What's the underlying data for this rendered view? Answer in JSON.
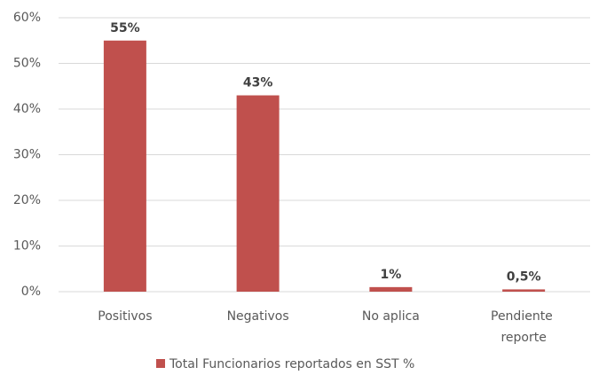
{
  "chart_data": {
    "type": "bar",
    "categories": [
      "Positivos",
      "Negativos",
      "No aplica",
      "Pendiente reporte"
    ],
    "series": [
      {
        "name": "Total Funcionarios reportados en SST %",
        "color": "#c0504d",
        "values": [
          55,
          43,
          1,
          0.5
        ],
        "value_labels": [
          "55%",
          "43%",
          "1%",
          "0,5%"
        ]
      }
    ],
    "ylim": [
      0,
      60
    ],
    "yticks": [
      {
        "value": 0,
        "label": "0%"
      },
      {
        "value": 10,
        "label": "10%"
      },
      {
        "value": 20,
        "label": "20%"
      },
      {
        "value": 30,
        "label": "30%"
      },
      {
        "value": 40,
        "label": "40%"
      },
      {
        "value": 50,
        "label": "50%"
      },
      {
        "value": 60,
        "label": "60%"
      }
    ],
    "grid": true,
    "legend": "bottom"
  }
}
